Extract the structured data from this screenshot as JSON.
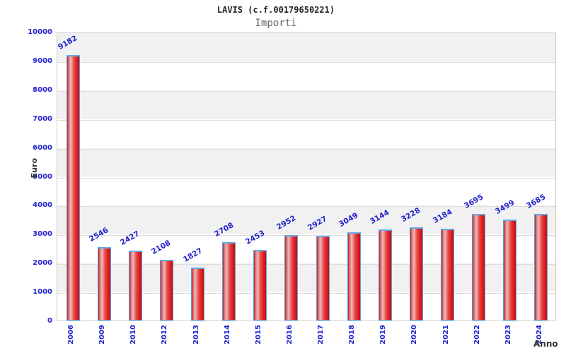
{
  "header": {
    "title": "LAVIS (c.f.00179650221)",
    "subtitle": "Importi"
  },
  "chart_data": {
    "type": "bar",
    "title": "LAVIS (c.f.00179650221)",
    "subtitle": "Importi",
    "categories": [
      "2006",
      "2009",
      "2010",
      "2012",
      "2013",
      "2014",
      "2015",
      "2016",
      "2017",
      "2018",
      "2019",
      "2020",
      "2021",
      "2022",
      "2023",
      "2024"
    ],
    "values": [
      9182,
      2546,
      2427,
      2108,
      1827,
      2708,
      2453,
      2952,
      2927,
      3049,
      3144,
      3228,
      3184,
      3695,
      3499,
      3685
    ],
    "xlabel": "Anno",
    "ylabel": "Euro",
    "ylim": [
      0,
      10000
    ],
    "ytick_step": 1000,
    "yticks": [
      0,
      1000,
      2000,
      3000,
      4000,
      5000,
      6000,
      7000,
      8000,
      9000,
      10000
    ],
    "grid": true,
    "legend_position": "none",
    "bar_labels_shown": true,
    "colors": {
      "bar_fill_dark": "#bb1313",
      "bar_fill_highlight": "#f2b8b8",
      "bar_border": "#58a0e0",
      "tick_label": "#2323cf",
      "value_label": "#2323cf",
      "axis_label": "#333333",
      "title": "#222222",
      "subtitle": "#666666",
      "band_gray": "#f1f1f1",
      "band_white": "#ffffff",
      "plot_border": "#cccccc",
      "gridline": "#dcdcdc"
    }
  }
}
